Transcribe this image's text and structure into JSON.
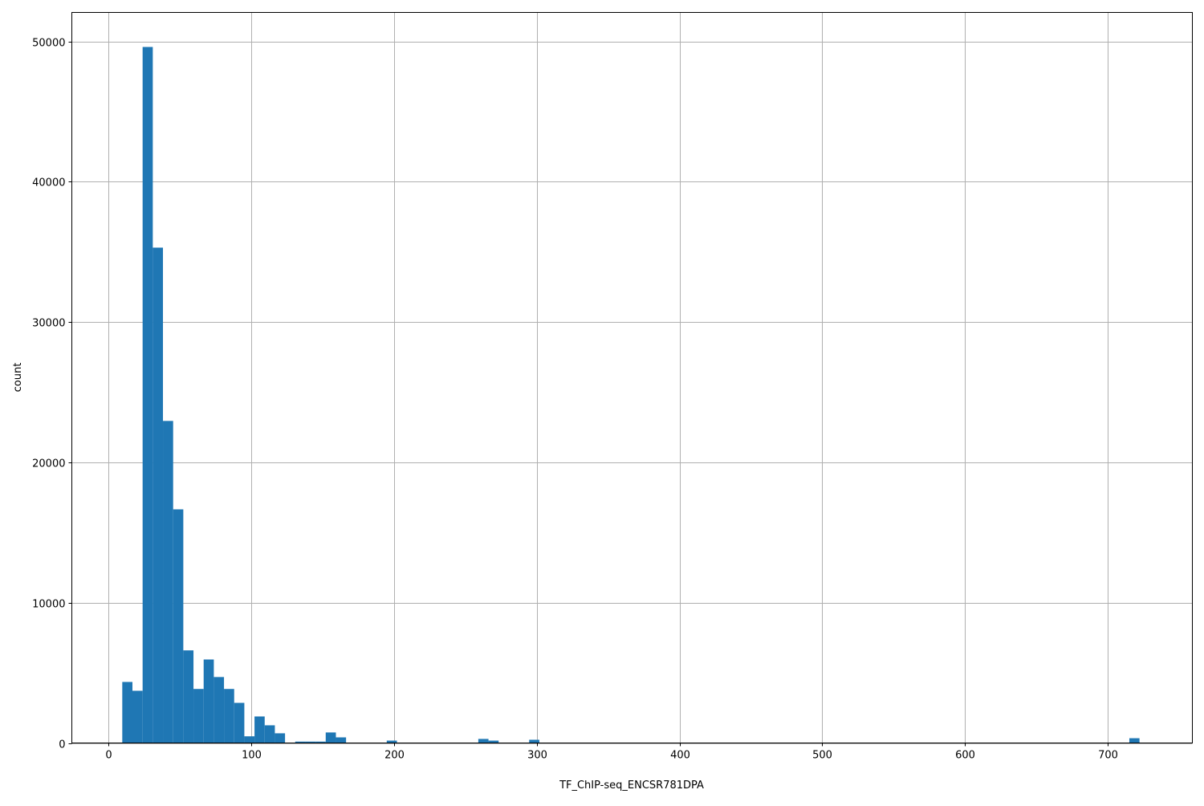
{
  "chart_data": {
    "type": "bar",
    "subtype": "histogram",
    "xlabel": "TF_ChIP-seq_ENCSR781DPA",
    "ylabel": "count",
    "xlim": [
      -25.3,
      759
    ],
    "ylim": [
      0,
      52060
    ],
    "grid": true,
    "bar_color": "#1f77b4",
    "bin_start": 10,
    "bin_width": 7.12,
    "values": [
      4350,
      3720,
      49600,
      35300,
      22950,
      16650,
      6600,
      3850,
      5950,
      4700,
      3850,
      2860,
      475,
      1890,
      1260,
      690,
      0,
      100,
      100,
      100,
      750,
      400,
      0,
      0,
      0,
      0,
      170,
      0,
      0,
      0,
      0,
      0,
      0,
      0,
      0,
      290,
      170,
      0,
      0,
      0,
      230,
      0,
      0,
      0,
      0,
      0,
      0,
      0,
      0,
      0,
      0,
      0,
      0,
      0,
      0,
      0,
      0,
      0,
      0,
      0,
      0,
      0,
      0,
      0,
      0,
      0,
      0,
      0,
      0,
      0,
      0,
      0,
      0,
      0,
      0,
      0,
      0,
      0,
      0,
      0,
      0,
      0,
      0,
      0,
      0,
      0,
      0,
      0,
      0,
      0,
      0,
      0,
      0,
      0,
      0,
      0,
      0,
      0,
      0,
      340
    ],
    "xticks": [
      0,
      100,
      200,
      300,
      400,
      500,
      600,
      700
    ],
    "yticks": [
      0,
      10000,
      20000,
      30000,
      40000,
      50000
    ]
  }
}
